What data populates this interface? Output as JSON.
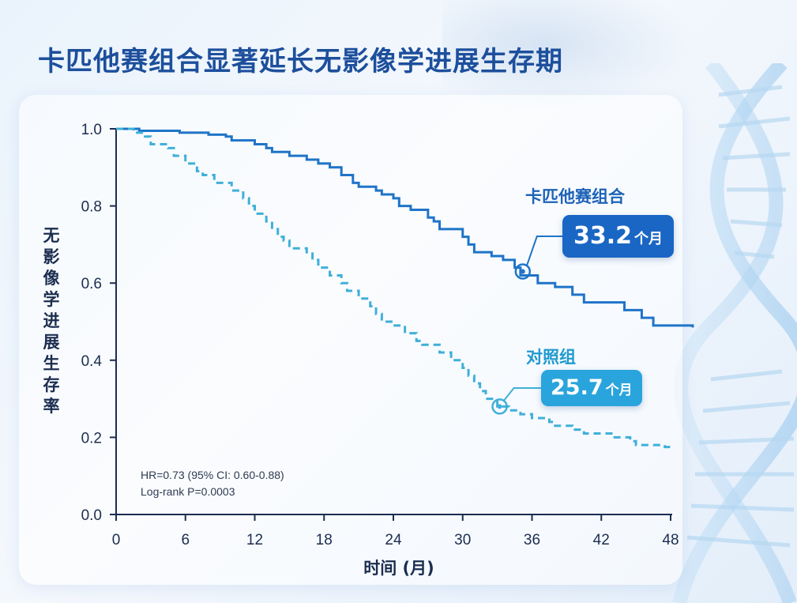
{
  "title": "卡匹他赛组合显著延长无影像学进展生存期",
  "stats": {
    "hr": "HR=0.73 (95% CI: 0.60-0.88)",
    "logrank": "Log-rank P=0.0003"
  },
  "labels": {
    "combo": "卡匹他赛组合",
    "control": "对照组"
  },
  "callouts": {
    "combo_value": "33.2",
    "control_value": "25.7",
    "unit": "个月"
  },
  "colors": {
    "combo": "#1f74c8",
    "control": "#3fb0d8",
    "axis": "#1b2d4f",
    "title": "#1d4f9c"
  },
  "chart_data": {
    "type": "line",
    "title": "卡匹他赛组合显著延长无影像学进展生存期",
    "xlabel": "时间 (月)",
    "ylabel": "无影像学进展生存率",
    "xlim": [
      0,
      48
    ],
    "ylim": [
      0.0,
      1.0
    ],
    "x_ticks": [
      0,
      6,
      12,
      18,
      24,
      30,
      36,
      42,
      48
    ],
    "y_ticks": [
      0.0,
      0.2,
      0.4,
      0.6,
      0.8,
      1.0
    ],
    "y_tick_labels": [
      "0.0",
      "0.2",
      "0.4",
      "0.6",
      "0.8",
      "1.0"
    ],
    "grid": false,
    "series": [
      {
        "name": "卡匹他赛组合",
        "style": "solid",
        "color": "#1f74c8",
        "step_points": [
          [
            0,
            1.0
          ],
          [
            2,
            0.995
          ],
          [
            5.5,
            0.99
          ],
          [
            8,
            0.985
          ],
          [
            9.5,
            0.98
          ],
          [
            10,
            0.97
          ],
          [
            12,
            0.96
          ],
          [
            13,
            0.95
          ],
          [
            13.5,
            0.94
          ],
          [
            15,
            0.93
          ],
          [
            16.5,
            0.92
          ],
          [
            17.5,
            0.91
          ],
          [
            18.5,
            0.9
          ],
          [
            19.5,
            0.88
          ],
          [
            20.5,
            0.86
          ],
          [
            21,
            0.85
          ],
          [
            22.5,
            0.84
          ],
          [
            23,
            0.83
          ],
          [
            24,
            0.82
          ],
          [
            24.5,
            0.8
          ],
          [
            25.5,
            0.79
          ],
          [
            27,
            0.77
          ],
          [
            27.5,
            0.76
          ],
          [
            28,
            0.74
          ],
          [
            30,
            0.72
          ],
          [
            30.5,
            0.7
          ],
          [
            31,
            0.68
          ],
          [
            32.5,
            0.67
          ],
          [
            33.5,
            0.66
          ],
          [
            34.5,
            0.64
          ],
          [
            35,
            0.62
          ],
          [
            36.5,
            0.6
          ],
          [
            38,
            0.59
          ],
          [
            39.5,
            0.57
          ],
          [
            40.5,
            0.55
          ],
          [
            44,
            0.53
          ],
          [
            45.5,
            0.51
          ],
          [
            46.5,
            0.49
          ],
          [
            50,
            0.485
          ]
        ],
        "median_months": 33.2,
        "median_point": [
          35.2,
          0.63
        ]
      },
      {
        "name": "对照组",
        "style": "dashed",
        "color": "#3fb0d8",
        "step_points": [
          [
            0,
            1.0
          ],
          [
            1.5,
            0.99
          ],
          [
            2.5,
            0.98
          ],
          [
            3,
            0.96
          ],
          [
            4.5,
            0.95
          ],
          [
            5,
            0.93
          ],
          [
            6,
            0.91
          ],
          [
            7,
            0.89
          ],
          [
            7.5,
            0.88
          ],
          [
            8.5,
            0.86
          ],
          [
            10,
            0.84
          ],
          [
            11,
            0.82
          ],
          [
            11.5,
            0.8
          ],
          [
            12,
            0.78
          ],
          [
            13,
            0.76
          ],
          [
            13.5,
            0.74
          ],
          [
            14,
            0.72
          ],
          [
            14.5,
            0.71
          ],
          [
            15,
            0.69
          ],
          [
            16.5,
            0.68
          ],
          [
            17,
            0.66
          ],
          [
            17.5,
            0.64
          ],
          [
            18.5,
            0.62
          ],
          [
            19.5,
            0.6
          ],
          [
            20,
            0.58
          ],
          [
            21,
            0.56
          ],
          [
            22,
            0.54
          ],
          [
            22.5,
            0.52
          ],
          [
            23,
            0.5
          ],
          [
            24,
            0.49
          ],
          [
            25,
            0.47
          ],
          [
            26,
            0.45
          ],
          [
            26.5,
            0.44
          ],
          [
            28,
            0.42
          ],
          [
            29,
            0.4
          ],
          [
            30,
            0.38
          ],
          [
            30.5,
            0.36
          ],
          [
            31,
            0.34
          ],
          [
            31.5,
            0.32
          ],
          [
            32,
            0.3
          ],
          [
            33,
            0.28
          ],
          [
            34,
            0.27
          ],
          [
            35,
            0.26
          ],
          [
            36,
            0.25
          ],
          [
            37.5,
            0.24
          ],
          [
            38,
            0.23
          ],
          [
            39.5,
            0.22
          ],
          [
            40.5,
            0.21
          ],
          [
            43,
            0.2
          ],
          [
            44.5,
            0.19
          ],
          [
            45,
            0.18
          ],
          [
            46.5,
            0.18
          ],
          [
            47.5,
            0.175
          ],
          [
            48,
            0.175
          ]
        ],
        "median_months": 25.7,
        "median_point": [
          33.2,
          0.28
        ]
      }
    ]
  }
}
